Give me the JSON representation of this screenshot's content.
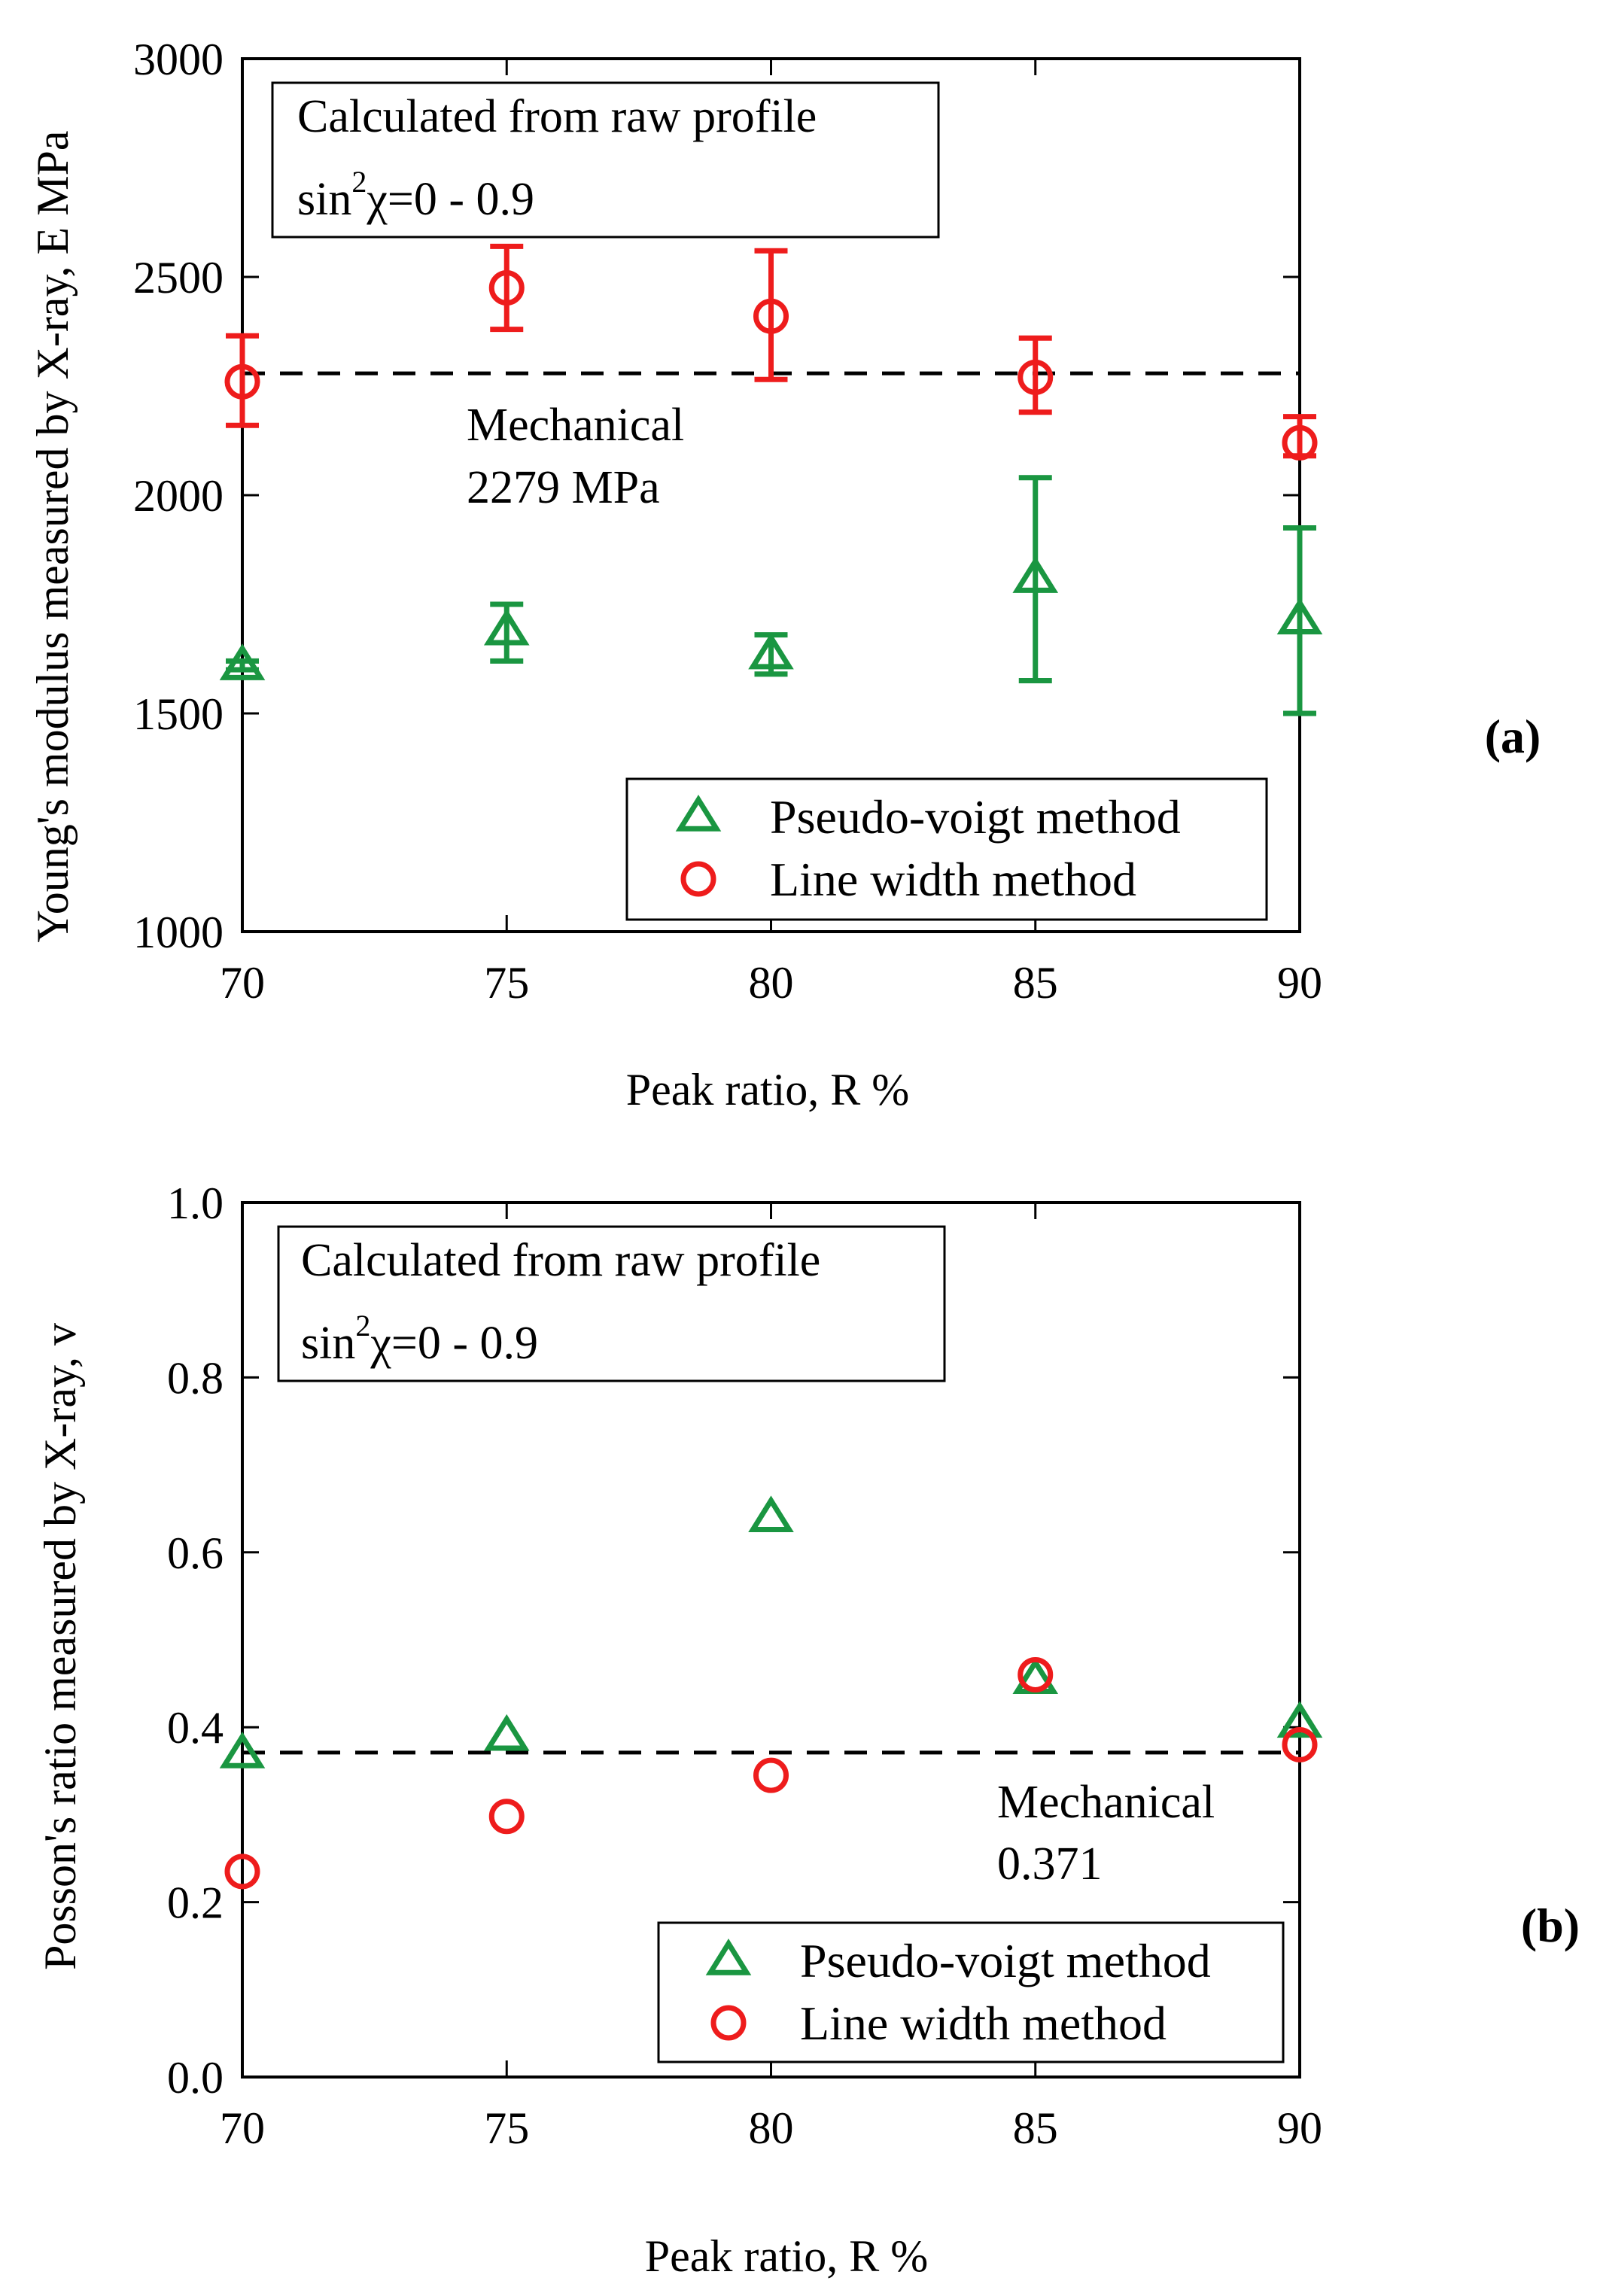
{
  "colors": {
    "pseudo_voigt": "#1a9641",
    "line_width": "#ee1c1c",
    "axis": "#000000",
    "mechanical_line": "#000000"
  },
  "chart_data": [
    {
      "type": "scatter",
      "panel_label": "(a)",
      "xlabel": "Peak ratio, R  %",
      "ylabel": "Young's modulus measured by X-ray,  E  MPa",
      "xlim": [
        70,
        90
      ],
      "ylim": [
        1000,
        3000
      ],
      "xticks": [
        70,
        75,
        80,
        85,
        90
      ],
      "yticks": [
        1000,
        1500,
        2000,
        2500,
        3000
      ],
      "grid": false,
      "legend_position": "bottom-right",
      "info_box": {
        "line1": "Calculated from raw profile",
        "line2_prefix": "sin",
        "line2_sup": "2",
        "line2_rest": "χ=0 - 0.9"
      },
      "reference": {
        "value": 2279,
        "line1": "Mechanical",
        "line2": "2279 MPa"
      },
      "series": [
        {
          "name": "Pseudo-voigt method",
          "marker": "triangle",
          "color": "#1a9641",
          "x": [
            70,
            75,
            80,
            85,
            90
          ],
          "y": [
            1610,
            1690,
            1635,
            1810,
            1715
          ],
          "err_low": [
            1600,
            1620,
            1590,
            1575,
            1500
          ],
          "err_high": [
            1620,
            1750,
            1680,
            2040,
            1925
          ]
        },
        {
          "name": "Line width method",
          "marker": "circle",
          "color": "#ee1c1c",
          "x": [
            70,
            75,
            80,
            85,
            90
          ],
          "y": [
            2260,
            2475,
            2410,
            2270,
            2120
          ],
          "err_low": [
            2160,
            2380,
            2265,
            2190,
            2090
          ],
          "err_high": [
            2365,
            2570,
            2560,
            2360,
            2180
          ]
        }
      ]
    },
    {
      "type": "scatter",
      "panel_label": "(b)",
      "xlabel": "Peak ratio, R  %",
      "ylabel": "Posson's ratio measured by X-ray,  v",
      "xlim": [
        70,
        90
      ],
      "ylim": [
        0.0,
        1.0
      ],
      "xticks": [
        70,
        75,
        80,
        85,
        90
      ],
      "yticks": [
        0.0,
        0.2,
        0.4,
        0.6,
        0.8,
        1.0
      ],
      "ytick_labels": [
        "0.0",
        "0.2",
        "0.4",
        "0.6",
        "0.8",
        "1.0"
      ],
      "grid": false,
      "legend_position": "bottom-right",
      "info_box": {
        "line1": "Calculated from raw profile",
        "line2_prefix": "sin",
        "line2_sup": "2",
        "line2_rest": "χ=0 - 0.9"
      },
      "reference": {
        "value": 0.371,
        "line1": "Mechanical",
        "line2": "0.371"
      },
      "series": [
        {
          "name": "Pseudo-voigt method",
          "marker": "triangle",
          "color": "#1a9641",
          "x": [
            70,
            75,
            80,
            85,
            90
          ],
          "y": [
            0.37,
            0.39,
            0.64,
            0.455,
            0.405
          ]
        },
        {
          "name": "Line width method",
          "marker": "circle",
          "color": "#ee1c1c",
          "x": [
            70,
            75,
            80,
            85,
            90
          ],
          "y": [
            0.235,
            0.298,
            0.345,
            0.46,
            0.38
          ]
        }
      ]
    }
  ]
}
